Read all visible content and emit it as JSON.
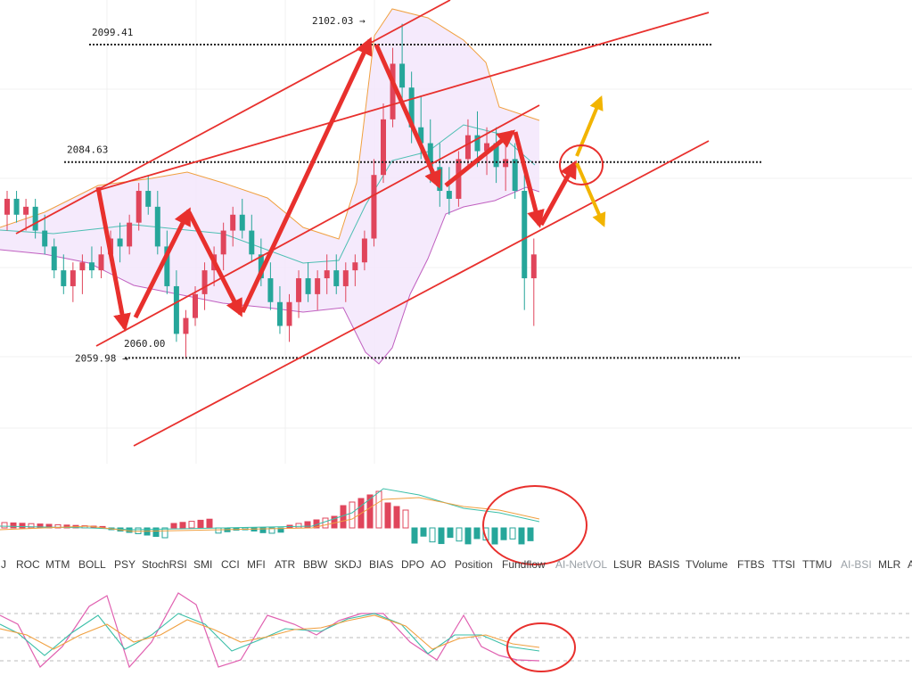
{
  "chart_data": [
    {
      "type": "candlestick",
      "price_levels": [
        {
          "label": "2102.03",
          "value": 2102.03,
          "marker": "→"
        },
        {
          "label": "2099.41",
          "value": 2099.41,
          "style": "dotted"
        },
        {
          "label": "2084.63",
          "value": 2084.63,
          "style": "dotted"
        },
        {
          "label": "2060.00",
          "value": 2060.0
        },
        {
          "label": "2059.98",
          "value": 2059.98,
          "marker": "→",
          "style": "dotted"
        }
      ],
      "candles": [
        [
          2078,
          2081,
          2076,
          2080
        ],
        [
          2080,
          2081,
          2077,
          2078
        ],
        [
          2078,
          2080,
          2076,
          2079
        ],
        [
          2079,
          2080,
          2075,
          2076
        ],
        [
          2076,
          2078,
          2073,
          2074
        ],
        [
          2074,
          2075,
          2070,
          2071
        ],
        [
          2071,
          2073,
          2068,
          2069
        ],
        [
          2069,
          2072,
          2067,
          2071
        ],
        [
          2071,
          2073,
          2068,
          2072
        ],
        [
          2072,
          2074,
          2070,
          2071
        ],
        [
          2071,
          2074,
          2070,
          2073
        ],
        [
          2073,
          2076,
          2072,
          2075
        ],
        [
          2075,
          2077,
          2072,
          2074
        ],
        [
          2074,
          2078,
          2073,
          2077
        ],
        [
          2077,
          2082,
          2076,
          2081
        ],
        [
          2081,
          2083,
          2078,
          2079
        ],
        [
          2079,
          2081,
          2073,
          2074
        ],
        [
          2074,
          2076,
          2068,
          2069
        ],
        [
          2069,
          2071,
          2062,
          2063
        ],
        [
          2063,
          2066,
          2060,
          2065
        ],
        [
          2065,
          2069,
          2064,
          2068
        ],
        [
          2068,
          2072,
          2066,
          2071
        ],
        [
          2071,
          2074,
          2069,
          2073
        ],
        [
          2073,
          2077,
          2071,
          2076
        ],
        [
          2076,
          2079,
          2074,
          2078
        ],
        [
          2078,
          2080,
          2075,
          2076
        ],
        [
          2076,
          2078,
          2072,
          2073
        ],
        [
          2073,
          2075,
          2069,
          2070
        ],
        [
          2070,
          2072,
          2066,
          2067
        ],
        [
          2067,
          2069,
          2063,
          2064
        ],
        [
          2064,
          2068,
          2062,
          2067
        ],
        [
          2067,
          2071,
          2065,
          2070
        ],
        [
          2070,
          2072,
          2067,
          2068
        ],
        [
          2068,
          2071,
          2066,
          2070
        ],
        [
          2070,
          2073,
          2068,
          2071
        ],
        [
          2071,
          2073,
          2068,
          2069
        ],
        [
          2069,
          2072,
          2067,
          2071
        ],
        [
          2071,
          2073,
          2069,
          2072
        ],
        [
          2072,
          2076,
          2071,
          2075
        ],
        [
          2075,
          2085,
          2074,
          2083
        ],
        [
          2083,
          2092,
          2082,
          2090
        ],
        [
          2090,
          2099,
          2089,
          2097
        ],
        [
          2097,
          2102.03,
          2092,
          2094
        ],
        [
          2094,
          2096,
          2087,
          2089
        ],
        [
          2089,
          2093,
          2085,
          2087
        ],
        [
          2087,
          2090,
          2082,
          2084
        ],
        [
          2084,
          2087,
          2079,
          2081
        ],
        [
          2081,
          2084,
          2078,
          2080
        ],
        [
          2080,
          2086,
          2079,
          2085
        ],
        [
          2085,
          2090,
          2084,
          2088
        ],
        [
          2088,
          2091,
          2084,
          2086
        ],
        [
          2086,
          2089,
          2083,
          2087
        ],
        [
          2087,
          2089,
          2082,
          2084
        ],
        [
          2084,
          2087,
          2081,
          2085
        ],
        [
          2085,
          2087,
          2080,
          2081
        ],
        [
          2081,
          2083,
          2066,
          2070
        ],
        [
          2070,
          2075,
          2064,
          2073
        ]
      ]
    },
    {
      "type": "bar",
      "name": "macd-histogram"
    },
    {
      "type": "line",
      "name": "oscillator"
    }
  ],
  "tabs": [
    {
      "label": "J"
    },
    {
      "label": "ROC"
    },
    {
      "label": "MTM"
    },
    {
      "label": "BOLL"
    },
    {
      "label": "PSY"
    },
    {
      "label": "StochRSI"
    },
    {
      "label": "SMI"
    },
    {
      "label": "CCI"
    },
    {
      "label": "MFI"
    },
    {
      "label": "ATR"
    },
    {
      "label": "BBW"
    },
    {
      "label": "SKDJ"
    },
    {
      "label": "BIAS"
    },
    {
      "label": "DPO"
    },
    {
      "label": "AO"
    },
    {
      "label": "Position"
    },
    {
      "label": "Fundflow"
    },
    {
      "label": "AI-NetVOL",
      "dim": true
    },
    {
      "label": "LSUR"
    },
    {
      "label": "BASIS"
    },
    {
      "label": "TVolume"
    },
    {
      "label": "FTBS"
    },
    {
      "label": "TTSI"
    },
    {
      "label": "TTMU"
    },
    {
      "label": "AI-BSI",
      "dim": true
    },
    {
      "label": "MLR"
    },
    {
      "label": "A"
    }
  ],
  "colors": {
    "up": "#e0455b",
    "down": "#26a69a",
    "upper_band": "#f0a040",
    "lower_band": "#c060c0",
    "band_fill": "#f3e6fb",
    "channel": "#e8302d",
    "arrow_red": "#e8302d",
    "arrow_yellow": "#f2b400"
  }
}
